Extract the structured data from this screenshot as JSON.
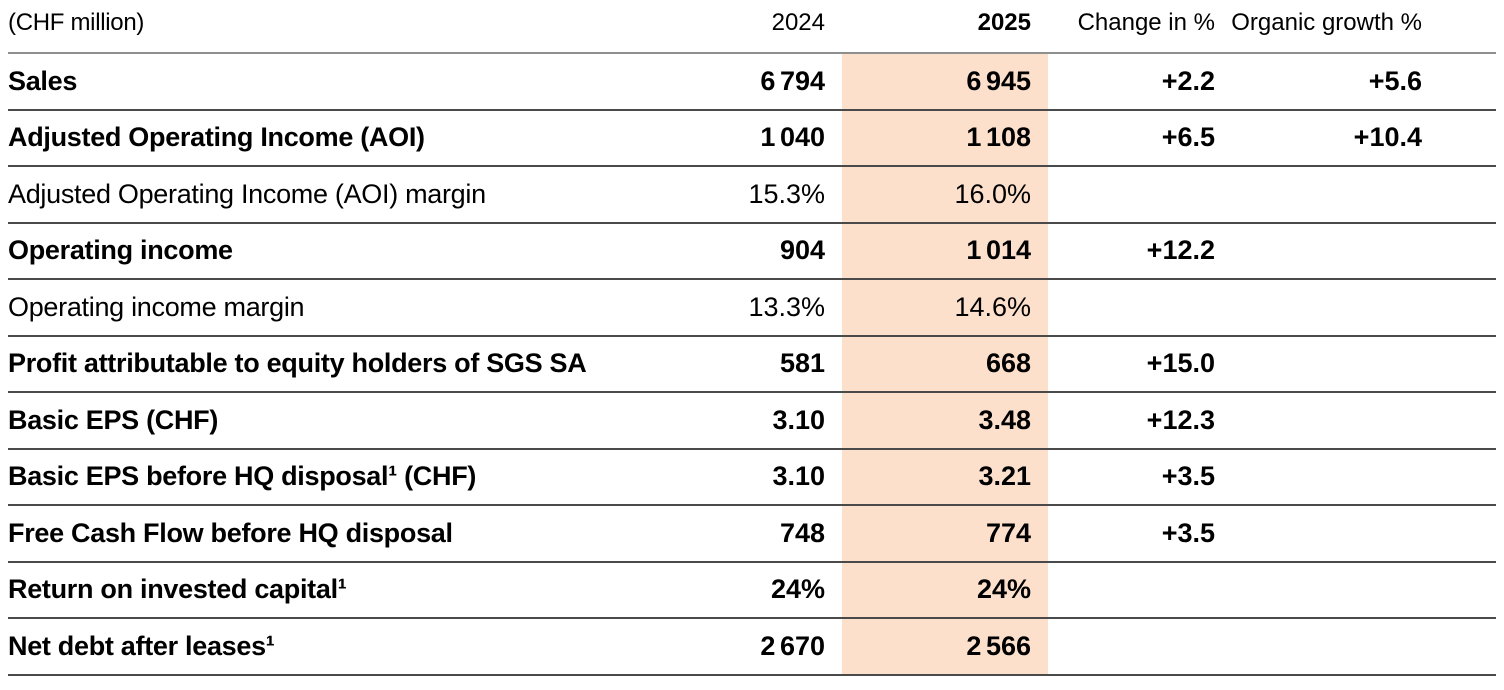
{
  "chart_data": {
    "type": "table",
    "unit_label": "(CHF million)",
    "columns": [
      "2024",
      "2025",
      "Change in %",
      "Organic growth %"
    ],
    "highlighted_column": "2025",
    "highlight_color": "#fce0cc",
    "rows": [
      {
        "label": "Sales",
        "emphasis": true,
        "y2024": "6 794",
        "y2025": "6 945",
        "change": "+2.2",
        "organic": "+5.6"
      },
      {
        "label": "Adjusted Operating Income (AOI)",
        "emphasis": true,
        "y2024": "1 040",
        "y2025": "1 108",
        "change": "+6.5",
        "organic": "+10.4"
      },
      {
        "label": "Adjusted Operating Income (AOI) margin",
        "emphasis": false,
        "y2024": "15.3%",
        "y2025": "16.0%",
        "change": "",
        "organic": ""
      },
      {
        "label": "Operating income",
        "emphasis": true,
        "y2024": "904",
        "y2025": "1 014",
        "change": "+12.2",
        "organic": ""
      },
      {
        "label": "Operating income margin",
        "emphasis": false,
        "y2024": "13.3%",
        "y2025": "14.6%",
        "change": "",
        "organic": ""
      },
      {
        "label": "Profit attributable to equity holders of SGS SA",
        "emphasis": true,
        "y2024": "581",
        "y2025": "668",
        "change": "+15.0",
        "organic": ""
      },
      {
        "label": "Basic EPS (CHF)",
        "emphasis": true,
        "y2024": "3.10",
        "y2025": "3.48",
        "change": "+12.3",
        "organic": ""
      },
      {
        "label": "Basic EPS before HQ disposal¹ (CHF)",
        "emphasis": true,
        "y2024": "3.10",
        "y2025": "3.21",
        "change": "+3.5",
        "organic": ""
      },
      {
        "label": "Free Cash Flow before HQ disposal",
        "emphasis": true,
        "y2024": "748",
        "y2025": "774",
        "change": "+3.5",
        "organic": ""
      },
      {
        "label": "Return on invested capital¹",
        "emphasis": true,
        "y2024": "24%",
        "y2025": "24%",
        "change": "",
        "organic": ""
      },
      {
        "label": "Net debt after leases¹",
        "emphasis": true,
        "y2024": "2 670",
        "y2025": "2 566",
        "change": "",
        "organic": ""
      }
    ]
  }
}
